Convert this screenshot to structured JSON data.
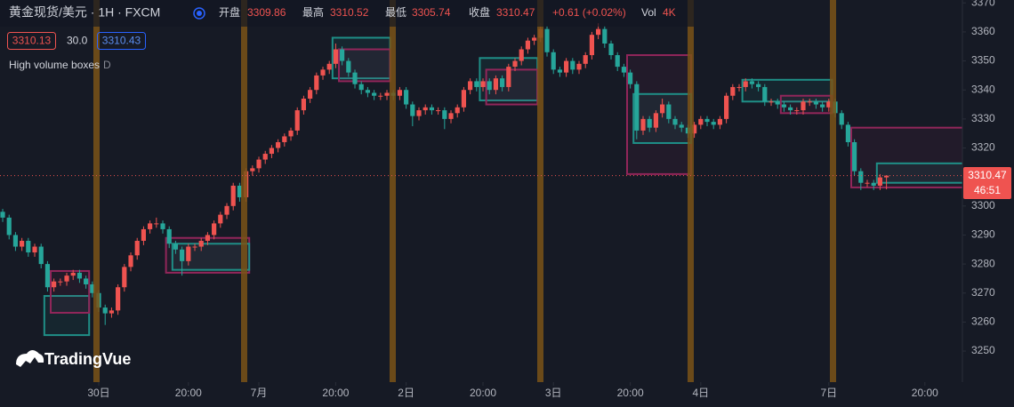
{
  "chart_data": {
    "type": "candlestick",
    "symbol_title": "黄金现货/美元 · 1H · FXCM",
    "ohlc_labels": {
      "open": "开盘",
      "high": "最高",
      "low": "最低",
      "close": "收盘"
    },
    "change": "+0.61 (+0.02%)",
    "volume_label": "Vol",
    "volume": "4K",
    "indicator_values": [
      "3310.13",
      "30.0",
      "3310.43"
    ],
    "indicator_title": "High volume boxes",
    "indicator_param": "D",
    "countdown": "46:51",
    "watermark": "TradingVue",
    "up_color": "#ef5350",
    "down_color": "#26a69a",
    "open": [
      3298,
      3296,
      3290,
      3286,
      3288,
      3284,
      3286,
      3280,
      3272,
      3274,
      3274,
      3276,
      3277,
      3275,
      3273,
      3270,
      3265,
      3263,
      3264,
      3272,
      3279,
      3283,
      3288,
      3292,
      3294,
      3294,
      3292,
      3287,
      3285,
      3281,
      3286,
      3286,
      3288,
      3290,
      3294,
      3297,
      3300,
      3307,
      3303,
      3312,
      3313,
      3316,
      3318,
      3320,
      3322,
      3324,
      3326,
      3333,
      3337,
      3340,
      3345,
      3347,
      3349,
      3354,
      3350,
      3346,
      3342,
      3340,
      3339,
      3338,
      3338,
      3339,
      3338,
      3340,
      3335,
      3331,
      3333,
      3334,
      3333,
      3333,
      3330,
      3332,
      3334,
      3340,
      3343,
      3341,
      3343,
      3340,
      3344,
      3341,
      3348,
      3350,
      3354,
      3357,
      3358,
      3361,
      3353,
      3347,
      3346,
      3350,
      3347,
      3349,
      3352,
      3359,
      3361,
      3356,
      3352,
      3348,
      3346,
      3342,
      3326,
      3330,
      3327,
      3332,
      3335,
      3330,
      3328,
      3327,
      3325,
      3328,
      3330,
      3329,
      3328,
      3330,
      3338,
      3341,
      3341,
      3343,
      3342,
      3341,
      3336,
      3336,
      3335,
      3334,
      3333,
      3333,
      3336,
      3336,
      3335,
      3334,
      3336,
      3332,
      3328,
      3322,
      3312,
      3308,
      3308,
      3307,
      3309.86
    ],
    "high": [
      3299,
      3297,
      3291,
      3289,
      3289,
      3287,
      3287,
      3281,
      3275,
      3275,
      3277,
      3278,
      3278,
      3276,
      3274,
      3271,
      3266,
      3265,
      3273,
      3280,
      3284,
      3289,
      3293,
      3295,
      3296,
      3295,
      3293,
      3288,
      3286,
      3287,
      3287,
      3289,
      3291,
      3295,
      3298,
      3301,
      3308,
      3308,
      3313,
      3314,
      3317,
      3319,
      3321,
      3323,
      3325,
      3327,
      3334,
      3338,
      3341,
      3346,
      3348,
      3350,
      3356,
      3355,
      3351,
      3347,
      3343,
      3341,
      3340,
      3339,
      3340,
      3340,
      3341,
      3341,
      3336,
      3334,
      3335,
      3335,
      3334,
      3334,
      3333,
      3335,
      3341,
      3344,
      3344,
      3344,
      3344,
      3345,
      3345,
      3349,
      3351,
      3355,
      3358,
      3359,
      3363,
      3362,
      3354,
      3348,
      3351,
      3351,
      3350,
      3353,
      3360,
      3363,
      3362,
      3357,
      3353,
      3349,
      3347,
      3343,
      3331,
      3331,
      3333,
      3337,
      3336,
      3331,
      3329,
      3328,
      3329,
      3331,
      3331,
      3330,
      3331,
      3339,
      3342,
      3342,
      3344,
      3344,
      3343,
      3342,
      3337,
      3337,
      3336,
      3335,
      3334,
      3337,
      3337,
      3337,
      3336,
      3337,
      3337,
      3333,
      3329,
      3323,
      3313,
      3309,
      3309,
      3311,
      3310.52
    ],
    "low": [
      3294.5,
      3288.5,
      3284.5,
      3284.5,
      3282.5,
      3282.5,
      3278.5,
      3270.5,
      3270.5,
      3272.5,
      3272.5,
      3274.5,
      3273.5,
      3271.5,
      3268.5,
      3263.5,
      3259,
      3261.5,
      3262.5,
      3270.5,
      3277.5,
      3281.5,
      3286.5,
      3290.5,
      3292.5,
      3290.5,
      3285.5,
      3283.5,
      3276,
      3279.5,
      3284.5,
      3284.5,
      3286.5,
      3288.5,
      3292.5,
      3295.5,
      3298.5,
      3301.5,
      3301.5,
      3310.5,
      3311.5,
      3314.5,
      3316.5,
      3318.5,
      3320.5,
      3322.5,
      3324.5,
      3331.5,
      3335.5,
      3338.5,
      3343.5,
      3345.5,
      3347.5,
      3348.5,
      3344.5,
      3340.5,
      3338.5,
      3337.5,
      3336.5,
      3336.5,
      3336.5,
      3336.5,
      3336.5,
      3333.5,
      3327.5,
      3329.5,
      3331.5,
      3331.5,
      3331.5,
      3326.5,
      3328.5,
      3330.5,
      3332.5,
      3338.5,
      3339.5,
      3339.5,
      3338.5,
      3338.5,
      3339.5,
      3339.5,
      3346.5,
      3348.5,
      3352.5,
      3355.5,
      3356.5,
      3351.5,
      3345.5,
      3344.5,
      3344.5,
      3345.5,
      3345.5,
      3347.5,
      3350.5,
      3357.5,
      3354.5,
      3350.5,
      3346.5,
      3344.5,
      3340.5,
      3323,
      3324.5,
      3325.5,
      3325.5,
      3330.5,
      3328.5,
      3326.5,
      3325.5,
      3323.5,
      3323.5,
      3326.5,
      3327.5,
      3326.5,
      3326.5,
      3328.5,
      3336.5,
      3339.5,
      3339.5,
      3340.5,
      3339.5,
      3334.5,
      3334.5,
      3333.5,
      3332.5,
      3331.5,
      3331.5,
      3331.5,
      3334.5,
      3333.5,
      3332.5,
      3332.5,
      3330.5,
      3326.5,
      3320.5,
      3310.5,
      3305.5,
      3306.5,
      3305.5,
      3305.5,
      3305.74
    ],
    "close": [
      3296,
      3290,
      3286,
      3288,
      3284,
      3286,
      3280,
      3272,
      3274,
      3274,
      3276,
      3277,
      3275,
      3273,
      3270,
      3265,
      3263,
      3264,
      3272,
      3279,
      3283,
      3288,
      3292,
      3294,
      3294,
      3292,
      3287,
      3285,
      3281,
      3286,
      3286,
      3288,
      3290,
      3294,
      3297,
      3300,
      3307,
      3303,
      3312,
      3313,
      3316,
      3318,
      3320,
      3322,
      3324,
      3326,
      3333,
      3337,
      3340,
      3345,
      3347,
      3349,
      3354,
      3350,
      3346,
      3342,
      3340,
      3339,
      3338,
      3338,
      3339,
      3338,
      3340,
      3335,
      3331,
      3333,
      3334,
      3333,
      3333,
      3330,
      3332,
      3334,
      3340,
      3343,
      3341,
      3343,
      3340,
      3344,
      3341,
      3348,
      3350,
      3354,
      3357,
      3358,
      3361,
      3353,
      3347,
      3346,
      3350,
      3347,
      3349,
      3352,
      3359,
      3361,
      3356,
      3352,
      3348,
      3346,
      3342,
      3326,
      3330,
      3327,
      3332,
      3335,
      3330,
      3328,
      3327,
      3325,
      3328,
      3330,
      3329,
      3328,
      3330,
      3338,
      3341,
      3341,
      3343,
      3342,
      3341,
      3336,
      3336,
      3335,
      3334,
      3333,
      3333,
      3336,
      3336,
      3335,
      3334,
      3336,
      3332,
      3328,
      3322,
      3312,
      3308,
      3308,
      3307,
      3309.86,
      3310.47
    ],
    "boxes": [
      {
        "start": 7,
        "end": 13,
        "top": 3269,
        "bottom": 3255.5,
        "color": "#1f8f87"
      },
      {
        "start": 8,
        "end": 13,
        "top": 3277.6,
        "bottom": 3263.2,
        "color": "#91265a"
      },
      {
        "start": 26,
        "end": 38,
        "top": 3289,
        "bottom": 3277,
        "color": "#91265a"
      },
      {
        "start": 27,
        "end": 38,
        "top": 3287,
        "bottom": 3278,
        "color": "#1f8f87"
      },
      {
        "start": 52,
        "end": 60,
        "top": 3358,
        "bottom": 3344,
        "color": "#1f8f87"
      },
      {
        "start": 53,
        "end": 60,
        "top": 3354,
        "bottom": 3343,
        "color": "#91265a"
      },
      {
        "start": 75,
        "end": 83,
        "top": 3351,
        "bottom": 3336.4,
        "color": "#1f8f87"
      },
      {
        "start": 76,
        "end": 83,
        "top": 3347,
        "bottom": 3335,
        "color": "#91265a"
      },
      {
        "start": 98,
        "end": 107,
        "top": 3352,
        "bottom": 3311,
        "color": "#91265a"
      },
      {
        "start": 99,
        "end": 107,
        "top": 3338.6,
        "bottom": 3321.7,
        "color": "#1f8f87"
      },
      {
        "start": 116,
        "end": 129,
        "top": 3343.5,
        "bottom": 3336,
        "color": "#1f8f87"
      },
      {
        "start": 122,
        "end": 129,
        "top": 3338,
        "bottom": 3332,
        "color": "#91265a"
      },
      {
        "start": 133,
        "end": 150,
        "top": 3327,
        "bottom": 3306.4,
        "color": "#91265a"
      },
      {
        "start": 137,
        "end": 150,
        "top": 3314.7,
        "bottom": 3308,
        "color": "#1f8f87"
      }
    ],
    "xlim": [
      -0.42,
      149.86
    ],
    "xticks": [
      {
        "value": 15,
        "label": "30日"
      },
      {
        "value": 29,
        "label": "20:00"
      },
      {
        "value": 40,
        "label": "7月"
      },
      {
        "value": 52,
        "label": "20:00"
      },
      {
        "value": 63,
        "label": "2日"
      },
      {
        "value": 75,
        "label": "20:00"
      },
      {
        "value": 86,
        "label": "3日"
      },
      {
        "value": 98,
        "label": "20:00"
      },
      {
        "value": 109,
        "label": "4日"
      },
      {
        "value": 129,
        "label": "7日"
      },
      {
        "value": 144,
        "label": "20:00"
      }
    ],
    "ylim": [
      3239.3,
      3371
    ],
    "yticks": [
      3250,
      3260,
      3270,
      3280,
      3290,
      3300,
      3310,
      3320,
      3330,
      3340,
      3350,
      3360,
      3370
    ],
    "grid": false,
    "last_price_line": true
  }
}
